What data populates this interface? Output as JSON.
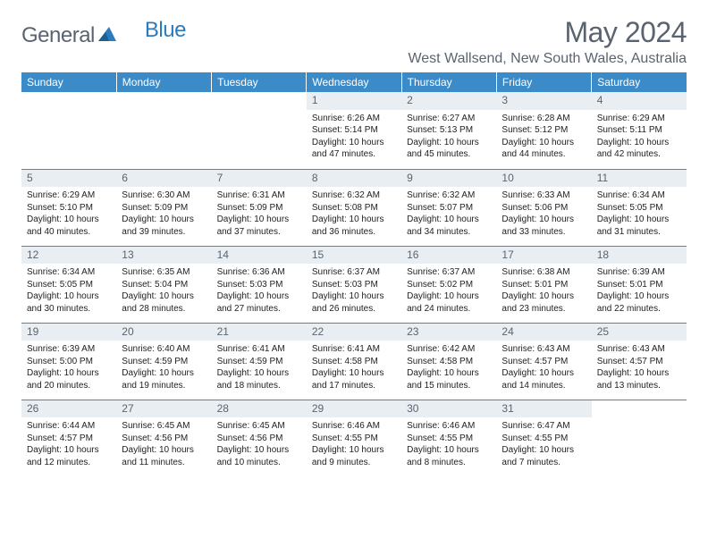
{
  "brand": {
    "part1": "General",
    "part2": "Blue"
  },
  "title": "May 2024",
  "location": "West Wallsend, New South Wales, Australia",
  "colors": {
    "header_bg": "#3b8bc9",
    "header_text": "#ffffff",
    "daynum_bg": "#e9eef2",
    "text_muted": "#5a6470",
    "row_divider": "#3b8bc9",
    "background": "#ffffff"
  },
  "layout": {
    "columns": 7,
    "rows": 5
  },
  "day_headers": [
    "Sunday",
    "Monday",
    "Tuesday",
    "Wednesday",
    "Thursday",
    "Friday",
    "Saturday"
  ],
  "weeks": [
    [
      {
        "n": "",
        "sr": "",
        "ss": "",
        "dl": ""
      },
      {
        "n": "",
        "sr": "",
        "ss": "",
        "dl": ""
      },
      {
        "n": "",
        "sr": "",
        "ss": "",
        "dl": ""
      },
      {
        "n": "1",
        "sr": "6:26 AM",
        "ss": "5:14 PM",
        "dl": "10 hours and 47 minutes."
      },
      {
        "n": "2",
        "sr": "6:27 AM",
        "ss": "5:13 PM",
        "dl": "10 hours and 45 minutes."
      },
      {
        "n": "3",
        "sr": "6:28 AM",
        "ss": "5:12 PM",
        "dl": "10 hours and 44 minutes."
      },
      {
        "n": "4",
        "sr": "6:29 AM",
        "ss": "5:11 PM",
        "dl": "10 hours and 42 minutes."
      }
    ],
    [
      {
        "n": "5",
        "sr": "6:29 AM",
        "ss": "5:10 PM",
        "dl": "10 hours and 40 minutes."
      },
      {
        "n": "6",
        "sr": "6:30 AM",
        "ss": "5:09 PM",
        "dl": "10 hours and 39 minutes."
      },
      {
        "n": "7",
        "sr": "6:31 AM",
        "ss": "5:09 PM",
        "dl": "10 hours and 37 minutes."
      },
      {
        "n": "8",
        "sr": "6:32 AM",
        "ss": "5:08 PM",
        "dl": "10 hours and 36 minutes."
      },
      {
        "n": "9",
        "sr": "6:32 AM",
        "ss": "5:07 PM",
        "dl": "10 hours and 34 minutes."
      },
      {
        "n": "10",
        "sr": "6:33 AM",
        "ss": "5:06 PM",
        "dl": "10 hours and 33 minutes."
      },
      {
        "n": "11",
        "sr": "6:34 AM",
        "ss": "5:05 PM",
        "dl": "10 hours and 31 minutes."
      }
    ],
    [
      {
        "n": "12",
        "sr": "6:34 AM",
        "ss": "5:05 PM",
        "dl": "10 hours and 30 minutes."
      },
      {
        "n": "13",
        "sr": "6:35 AM",
        "ss": "5:04 PM",
        "dl": "10 hours and 28 minutes."
      },
      {
        "n": "14",
        "sr": "6:36 AM",
        "ss": "5:03 PM",
        "dl": "10 hours and 27 minutes."
      },
      {
        "n": "15",
        "sr": "6:37 AM",
        "ss": "5:03 PM",
        "dl": "10 hours and 26 minutes."
      },
      {
        "n": "16",
        "sr": "6:37 AM",
        "ss": "5:02 PM",
        "dl": "10 hours and 24 minutes."
      },
      {
        "n": "17",
        "sr": "6:38 AM",
        "ss": "5:01 PM",
        "dl": "10 hours and 23 minutes."
      },
      {
        "n": "18",
        "sr": "6:39 AM",
        "ss": "5:01 PM",
        "dl": "10 hours and 22 minutes."
      }
    ],
    [
      {
        "n": "19",
        "sr": "6:39 AM",
        "ss": "5:00 PM",
        "dl": "10 hours and 20 minutes."
      },
      {
        "n": "20",
        "sr": "6:40 AM",
        "ss": "4:59 PM",
        "dl": "10 hours and 19 minutes."
      },
      {
        "n": "21",
        "sr": "6:41 AM",
        "ss": "4:59 PM",
        "dl": "10 hours and 18 minutes."
      },
      {
        "n": "22",
        "sr": "6:41 AM",
        "ss": "4:58 PM",
        "dl": "10 hours and 17 minutes."
      },
      {
        "n": "23",
        "sr": "6:42 AM",
        "ss": "4:58 PM",
        "dl": "10 hours and 15 minutes."
      },
      {
        "n": "24",
        "sr": "6:43 AM",
        "ss": "4:57 PM",
        "dl": "10 hours and 14 minutes."
      },
      {
        "n": "25",
        "sr": "6:43 AM",
        "ss": "4:57 PM",
        "dl": "10 hours and 13 minutes."
      }
    ],
    [
      {
        "n": "26",
        "sr": "6:44 AM",
        "ss": "4:57 PM",
        "dl": "10 hours and 12 minutes."
      },
      {
        "n": "27",
        "sr": "6:45 AM",
        "ss": "4:56 PM",
        "dl": "10 hours and 11 minutes."
      },
      {
        "n": "28",
        "sr": "6:45 AM",
        "ss": "4:56 PM",
        "dl": "10 hours and 10 minutes."
      },
      {
        "n": "29",
        "sr": "6:46 AM",
        "ss": "4:55 PM",
        "dl": "10 hours and 9 minutes."
      },
      {
        "n": "30",
        "sr": "6:46 AM",
        "ss": "4:55 PM",
        "dl": "10 hours and 8 minutes."
      },
      {
        "n": "31",
        "sr": "6:47 AM",
        "ss": "4:55 PM",
        "dl": "10 hours and 7 minutes."
      },
      {
        "n": "",
        "sr": "",
        "ss": "",
        "dl": ""
      }
    ]
  ],
  "labels": {
    "sunrise": "Sunrise:",
    "sunset": "Sunset:",
    "daylight": "Daylight:"
  }
}
